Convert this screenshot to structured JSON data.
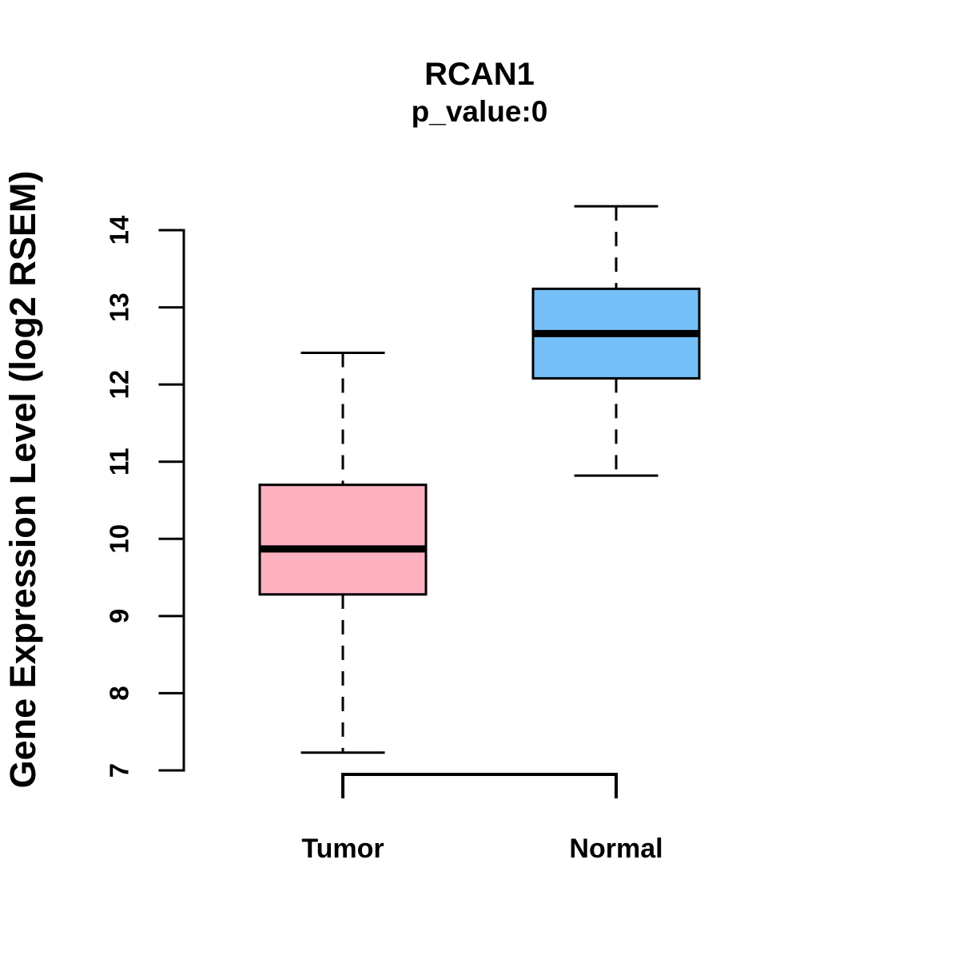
{
  "page": {
    "background_color": "#ffffff"
  },
  "chart_data": {
    "type": "boxplot",
    "title": "RCAN1",
    "subtitle": "p_value:0",
    "ylabel": "Gene Expression Level (log2 RSEM)",
    "xlabel": "",
    "categories": [
      "Tumor",
      "Normal"
    ],
    "yticks": [
      7,
      8,
      9,
      10,
      11,
      12,
      13,
      14
    ],
    "ylim": [
      6.9,
      14.45
    ],
    "grid": false,
    "legend_position": "none",
    "stroke_color": "#000000",
    "whisker_style": "dashed",
    "groups": [
      {
        "label": "Tumor",
        "fill_color": "#FDB0C0",
        "lower_whisker": 7.23,
        "q1": 9.28,
        "median": 9.87,
        "q3": 10.7,
        "upper_whisker": 12.41
      },
      {
        "label": "Normal",
        "fill_color": "#74BFF8",
        "lower_whisker": 10.82,
        "q1": 12.08,
        "median": 12.66,
        "q3": 13.24,
        "upper_whisker": 14.31
      }
    ]
  }
}
